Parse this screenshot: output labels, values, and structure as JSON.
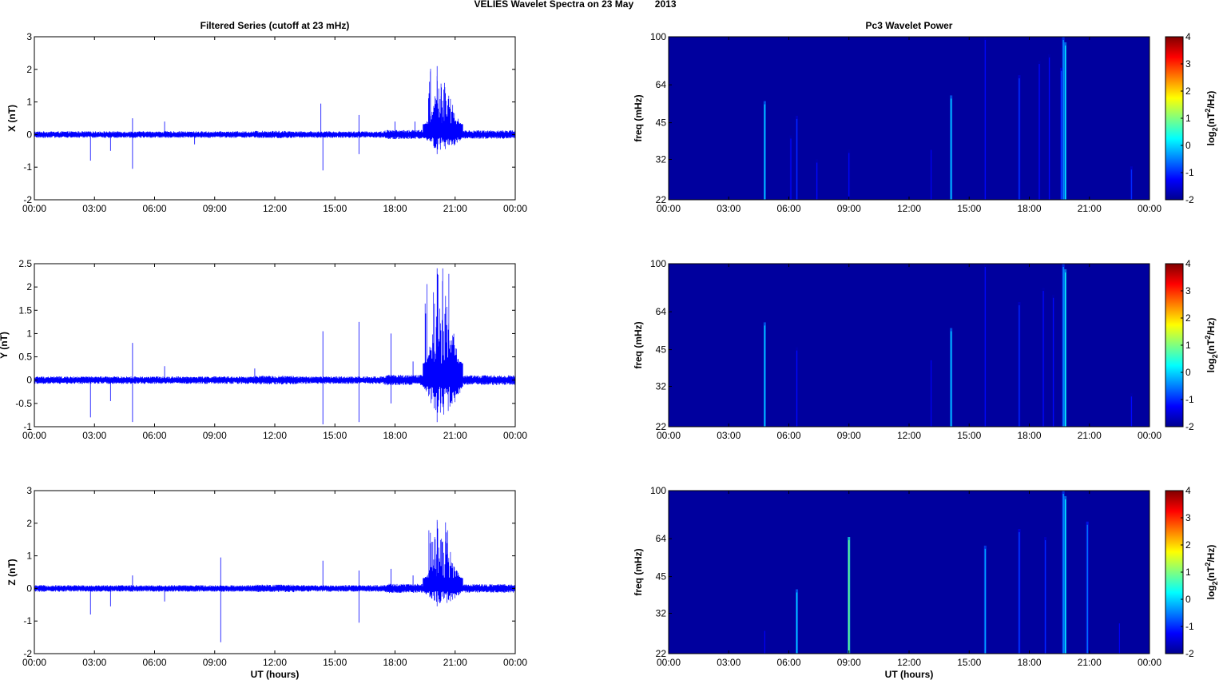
{
  "figure": {
    "suptitle": "VELIES Wavelet Spectra on 23 May        2013",
    "left_title": "Filtered Series (cutoff at 23 mHz)",
    "right_title": "Pc3 Wavelet Power",
    "xlabel": "UT (hours)",
    "spectro_ylabel": "freq (mHz)",
    "colorbar_label": "log2(nT2/Hz)",
    "colorbar_label_parts": [
      "log",
      "2",
      "(nT",
      "2",
      "/Hz)"
    ],
    "colors": {
      "trace": "#0000ff",
      "axes": "#000000",
      "background": "#00008f"
    }
  },
  "chart_data": [
    {
      "type": "line",
      "title": "Filtered Series (cutoff at 23 mHz)",
      "component": "X",
      "ylabel": "X (nT)",
      "xlabel": "",
      "xlim": [
        0,
        24
      ],
      "ylim": [
        -2,
        3
      ],
      "yticks": [
        "3",
        "2",
        "1",
        "0",
        "-1",
        "-2"
      ],
      "xticks": [
        "00:00",
        "03:00",
        "06:00",
        "09:00",
        "12:00",
        "15:00",
        "18:00",
        "21:00",
        "00:00"
      ],
      "noise_amplitude": 0.1,
      "burst": {
        "start_hour": 19.4,
        "end_hour": 21.4,
        "max": 2.1,
        "min": -0.6
      },
      "spikes": [
        {
          "t": 2.8,
          "v": -0.8
        },
        {
          "t": 3.8,
          "v": -0.5
        },
        {
          "t": 4.9,
          "v": 0.5
        },
        {
          "t": 4.9,
          "v": -1.05
        },
        {
          "t": 6.5,
          "v": 0.4
        },
        {
          "t": 8.0,
          "v": -0.3
        },
        {
          "t": 14.3,
          "v": 0.95
        },
        {
          "t": 14.4,
          "v": -1.1
        },
        {
          "t": 16.2,
          "v": 0.6
        },
        {
          "t": 16.2,
          "v": -0.6
        },
        {
          "t": 18.0,
          "v": 0.4
        },
        {
          "t": 19.0,
          "v": 0.4
        }
      ]
    },
    {
      "type": "line",
      "component": "Y",
      "ylabel": "Y (nT)",
      "xlabel": "",
      "xlim": [
        0,
        24
      ],
      "ylim": [
        -1,
        2.5
      ],
      "yticks": [
        "2.5",
        "2",
        "1.5",
        "1",
        "0.5",
        "0",
        "-0.5",
        "-1"
      ],
      "xticks": [
        "00:00",
        "03:00",
        "06:00",
        "09:00",
        "12:00",
        "15:00",
        "18:00",
        "21:00",
        "00:00"
      ],
      "noise_amplitude": 0.08,
      "burst": {
        "start_hour": 19.4,
        "end_hour": 21.4,
        "max": 2.4,
        "min": -0.9
      },
      "spikes": [
        {
          "t": 2.8,
          "v": -0.8
        },
        {
          "t": 3.8,
          "v": -0.45
        },
        {
          "t": 4.9,
          "v": 0.8
        },
        {
          "t": 4.9,
          "v": -0.9
        },
        {
          "t": 6.5,
          "v": 0.3
        },
        {
          "t": 11.0,
          "v": 0.25
        },
        {
          "t": 14.4,
          "v": 1.05
        },
        {
          "t": 14.4,
          "v": -0.95
        },
        {
          "t": 16.2,
          "v": 1.25
        },
        {
          "t": 16.2,
          "v": -0.9
        },
        {
          "t": 17.8,
          "v": 1.0
        },
        {
          "t": 17.8,
          "v": -0.5
        },
        {
          "t": 18.9,
          "v": 0.4
        }
      ]
    },
    {
      "type": "line",
      "component": "Z",
      "ylabel": "Z (nT)",
      "xlabel": "UT (hours)",
      "xlim": [
        0,
        24
      ],
      "ylim": [
        -2,
        3
      ],
      "yticks": [
        "3",
        "2",
        "1",
        "0",
        "-1",
        "-2"
      ],
      "xticks": [
        "00:00",
        "03:00",
        "06:00",
        "09:00",
        "12:00",
        "15:00",
        "18:00",
        "21:00",
        "00:00"
      ],
      "noise_amplitude": 0.1,
      "burst": {
        "start_hour": 19.4,
        "end_hour": 21.4,
        "max": 2.1,
        "min": -0.55
      },
      "spikes": [
        {
          "t": 2.8,
          "v": -0.8
        },
        {
          "t": 3.8,
          "v": -0.55
        },
        {
          "t": 4.9,
          "v": 0.4
        },
        {
          "t": 6.5,
          "v": -0.4
        },
        {
          "t": 9.3,
          "v": 0.95
        },
        {
          "t": 9.3,
          "v": -1.65
        },
        {
          "t": 14.4,
          "v": 0.85
        },
        {
          "t": 16.2,
          "v": 0.55
        },
        {
          "t": 16.2,
          "v": -1.05
        },
        {
          "t": 17.8,
          "v": 0.6
        },
        {
          "t": 18.9,
          "v": 0.4
        }
      ]
    },
    {
      "type": "heatmap",
      "title": "Pc3 Wavelet Power",
      "ylabel": "freq (mHz)",
      "xlabel": "",
      "xlim": [
        0,
        24
      ],
      "ylim": [
        22,
        100
      ],
      "yscale": "log",
      "yticks": [
        100,
        64,
        45,
        32,
        22
      ],
      "xticks": [
        "00:00",
        "03:00",
        "06:00",
        "09:00",
        "12:00",
        "15:00",
        "18:00",
        "21:00",
        "00:00"
      ],
      "colorbar": {
        "ticks": [
          4,
          3,
          2,
          1,
          0,
          -1,
          -2
        ],
        "range": [
          -2,
          4
        ],
        "colormap": "jet",
        "label": "log2(nT2/Hz)"
      },
      "background_level": -1.9,
      "streaks": [
        {
          "t": 4.8,
          "fmax": 55,
          "level": 0
        },
        {
          "t": 6.4,
          "fmax": 48,
          "level": -1
        },
        {
          "t": 6.1,
          "fmax": 40,
          "level": -1.2
        },
        {
          "t": 7.4,
          "fmax": 32,
          "level": -1.2
        },
        {
          "t": 9.0,
          "fmax": 35,
          "level": -1.2
        },
        {
          "t": 13.1,
          "fmax": 36,
          "level": -1.3
        },
        {
          "t": 14.1,
          "fmax": 58,
          "level": 0
        },
        {
          "t": 15.8,
          "fmax": 100,
          "level": -1.2
        },
        {
          "t": 17.5,
          "fmax": 70,
          "level": -0.9
        },
        {
          "t": 18.5,
          "fmax": 80,
          "level": -1.2
        },
        {
          "t": 19.0,
          "fmax": 85,
          "level": -1.2
        },
        {
          "t": 19.7,
          "fmax": 100,
          "level": -0.3
        },
        {
          "t": 19.8,
          "fmax": 95,
          "level": 0.2
        },
        {
          "t": 19.6,
          "fmax": 75,
          "level": -0.8
        },
        {
          "t": 23.1,
          "fmax": 30,
          "level": -1
        }
      ]
    },
    {
      "type": "heatmap",
      "ylabel": "freq (mHz)",
      "xlabel": "",
      "xlim": [
        0,
        24
      ],
      "ylim": [
        22,
        100
      ],
      "yscale": "log",
      "yticks": [
        100,
        64,
        45,
        32,
        22
      ],
      "xticks": [
        "00:00",
        "03:00",
        "06:00",
        "09:00",
        "12:00",
        "15:00",
        "18:00",
        "21:00",
        "00:00"
      ],
      "colorbar": {
        "ticks": [
          4,
          3,
          2,
          1,
          0,
          -1,
          -2
        ],
        "range": [
          -2,
          4
        ],
        "colormap": "jet",
        "label": "log2(nT2/Hz)"
      },
      "background_level": -1.9,
      "streaks": [
        {
          "t": 4.8,
          "fmax": 58,
          "level": 0
        },
        {
          "t": 6.4,
          "fmax": 46,
          "level": -1.2
        },
        {
          "t": 13.1,
          "fmax": 42,
          "level": -1.3
        },
        {
          "t": 14.1,
          "fmax": 55,
          "level": 0
        },
        {
          "t": 15.8,
          "fmax": 100,
          "level": -1.2
        },
        {
          "t": 17.5,
          "fmax": 70,
          "level": -1
        },
        {
          "t": 18.7,
          "fmax": 80,
          "level": -1.2
        },
        {
          "t": 19.2,
          "fmax": 75,
          "level": -1.2
        },
        {
          "t": 19.7,
          "fmax": 100,
          "level": -0.3
        },
        {
          "t": 19.8,
          "fmax": 95,
          "level": 0.3
        },
        {
          "t": 23.1,
          "fmax": 30,
          "level": -1.2
        }
      ]
    },
    {
      "type": "heatmap",
      "ylabel": "freq (mHz)",
      "xlabel": "UT (hours)",
      "xlim": [
        0,
        24
      ],
      "ylim": [
        22,
        100
      ],
      "yscale": "log",
      "yticks": [
        100,
        64,
        45,
        32,
        22
      ],
      "xticks": [
        "00:00",
        "03:00",
        "06:00",
        "09:00",
        "12:00",
        "15:00",
        "18:00",
        "21:00",
        "00:00"
      ],
      "colorbar": {
        "ticks": [
          4,
          3,
          2,
          1,
          0,
          -1,
          -2
        ],
        "range": [
          -2,
          4
        ],
        "colormap": "jet",
        "label": "log2(nT2/Hz)"
      },
      "background_level": -1.9,
      "streaks": [
        {
          "t": 4.8,
          "fmax": 28,
          "level": -1.3
        },
        {
          "t": 6.4,
          "fmax": 40,
          "level": 0
        },
        {
          "t": 9.0,
          "fmax": 65,
          "level": 1
        },
        {
          "t": 15.8,
          "fmax": 60,
          "level": -0.2
        },
        {
          "t": 17.5,
          "fmax": 70,
          "level": -0.8
        },
        {
          "t": 18.8,
          "fmax": 65,
          "level": -1
        },
        {
          "t": 19.7,
          "fmax": 100,
          "level": -0.3
        },
        {
          "t": 19.8,
          "fmax": 95,
          "level": 0.2
        },
        {
          "t": 20.9,
          "fmax": 75,
          "level": -0.5
        },
        {
          "t": 22.5,
          "fmax": 30,
          "level": -1.3
        }
      ]
    }
  ]
}
